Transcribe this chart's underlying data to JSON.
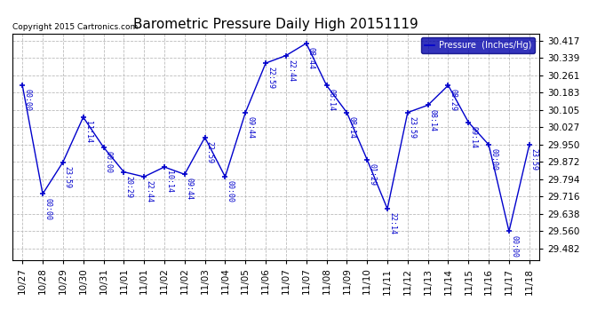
{
  "title": "Barometric Pressure Daily High 20151119",
  "copyright": "Copyright 2015 Cartronics.com",
  "legend_label": "Pressure  (Inches/Hg)",
  "background_color": "#ffffff",
  "line_color": "#0000cc",
  "grid_color": "#bbbbbb",
  "points": [
    {
      "date": "10/27",
      "value": 30.216,
      "time": "00:00"
    },
    {
      "date": "10/28",
      "value": 29.728,
      "time": "00:00"
    },
    {
      "date": "10/29",
      "value": 29.871,
      "time": "23:59"
    },
    {
      "date": "10/30",
      "value": 30.073,
      "time": "11:14"
    },
    {
      "date": "10/31",
      "value": 29.938,
      "time": "00:00"
    },
    {
      "date": "11/01",
      "value": 29.827,
      "time": "20:29"
    },
    {
      "date": "11/01",
      "value": 29.805,
      "time": "22:44"
    },
    {
      "date": "11/02",
      "value": 29.849,
      "time": "10:14"
    },
    {
      "date": "11/02",
      "value": 29.816,
      "time": "09:44"
    },
    {
      "date": "11/03",
      "value": 29.982,
      "time": "22:59"
    },
    {
      "date": "11/04",
      "value": 29.805,
      "time": "00:00"
    },
    {
      "date": "11/05",
      "value": 30.094,
      "time": "09:44"
    },
    {
      "date": "11/06",
      "value": 30.316,
      "time": "22:59"
    },
    {
      "date": "11/07",
      "value": 30.35,
      "time": "22:44"
    },
    {
      "date": "11/07",
      "value": 30.405,
      "time": "08:44"
    },
    {
      "date": "11/08",
      "value": 30.216,
      "time": "08:14"
    },
    {
      "date": "11/09",
      "value": 30.094,
      "time": "08:14"
    },
    {
      "date": "11/10",
      "value": 29.882,
      "time": "01:29"
    },
    {
      "date": "11/11",
      "value": 29.661,
      "time": "22:14"
    },
    {
      "date": "11/12",
      "value": 30.094,
      "time": "23:59"
    },
    {
      "date": "11/13",
      "value": 30.127,
      "time": "08:14"
    },
    {
      "date": "11/14",
      "value": 30.216,
      "time": "08:29"
    },
    {
      "date": "11/15",
      "value": 30.05,
      "time": "09:14"
    },
    {
      "date": "11/16",
      "value": 29.949,
      "time": "00:00"
    },
    {
      "date": "11/17",
      "value": 29.56,
      "time": "00:00"
    },
    {
      "date": "11/18",
      "value": 29.949,
      "time": "23:59"
    }
  ],
  "xtick_labels": [
    "10/27",
    "10/28",
    "10/29",
    "10/30",
    "10/31",
    "11/01",
    "11/01",
    "11/02",
    "11/02",
    "11/03",
    "11/04",
    "11/05",
    "11/06",
    "11/07",
    "11/07",
    "11/08",
    "11/09",
    "11/10",
    "11/11",
    "11/12",
    "11/13",
    "11/14",
    "11/15",
    "11/16",
    "11/17",
    "11/18"
  ],
  "yticks": [
    29.482,
    29.56,
    29.638,
    29.716,
    29.794,
    29.872,
    29.95,
    30.027,
    30.105,
    30.183,
    30.261,
    30.339,
    30.417
  ],
  "ylim": [
    29.432,
    30.45
  ],
  "figsize": [
    6.9,
    3.75
  ],
  "dpi": 100
}
